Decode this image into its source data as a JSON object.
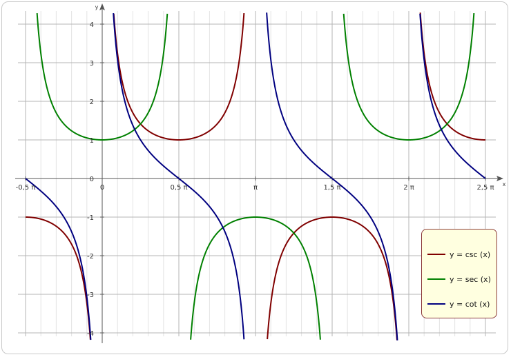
{
  "chart_data": {
    "type": "line",
    "x_unit": "radians",
    "xlim": [
      -1.5708,
      7.854
    ],
    "ylim": [
      -4.2,
      4.3
    ],
    "x_ticks": [
      {
        "value": -1.5708,
        "label": "-0,5 π"
      },
      {
        "value": 0,
        "label": "0"
      },
      {
        "value": 1.5708,
        "label": "0,5 π"
      },
      {
        "value": 3.1416,
        "label": "π"
      },
      {
        "value": 4.7124,
        "label": "1,5 π"
      },
      {
        "value": 6.2832,
        "label": "2 π"
      },
      {
        "value": 7.854,
        "label": "2,5 π"
      }
    ],
    "y_ticks": [
      {
        "value": 4,
        "label": "4"
      },
      {
        "value": 3,
        "label": "3"
      },
      {
        "value": 2,
        "label": "2"
      },
      {
        "value": 1,
        "label": "1"
      },
      {
        "value": 0,
        "label": "0"
      },
      {
        "value": -1,
        "label": "-1"
      },
      {
        "value": -2,
        "label": "-2"
      },
      {
        "value": -3,
        "label": "-3"
      },
      {
        "value": -4,
        "label": "-4"
      }
    ],
    "xlabel": "x",
    "ylabel": "y",
    "grid": true,
    "legend_position": "bottom-right",
    "series": [
      {
        "name": "y = csc (x)",
        "function": "csc",
        "color": "#800000"
      },
      {
        "name": "y = sec (x)",
        "function": "sec",
        "color": "#008000"
      },
      {
        "name": "y = cot (x)",
        "function": "cot",
        "color": "#000080"
      }
    ]
  }
}
